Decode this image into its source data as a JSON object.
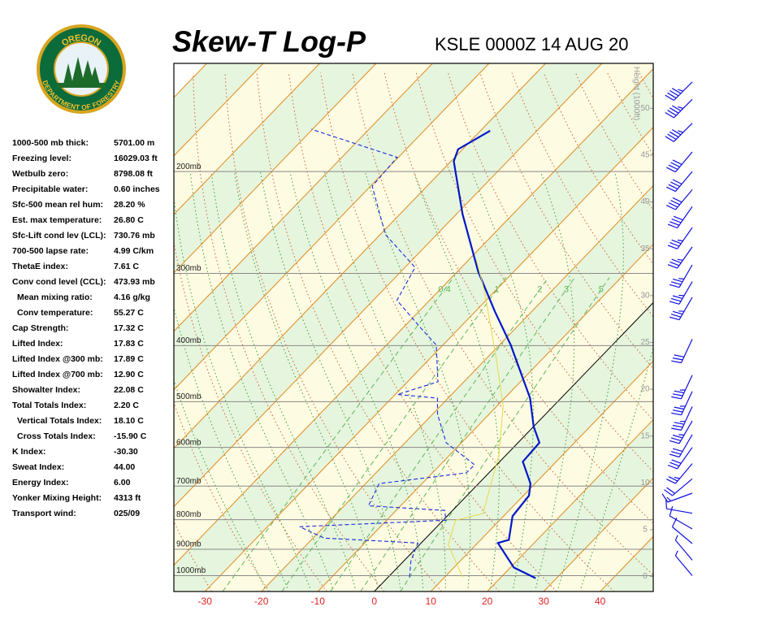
{
  "logo": {
    "top": "OREGON",
    "bottom": "DEPARTMENT OF FORESTRY"
  },
  "header": {
    "title": "Skew-T Log-P",
    "station": "KSLE 0000Z 14 AUG 20"
  },
  "indices": [
    {
      "label": "1000-500 mb thick:",
      "value": "5701.00 m"
    },
    {
      "label": "Freezing level:",
      "value": "16029.03 ft"
    },
    {
      "label": "Wetbulb zero:",
      "value": "8798.08 ft"
    },
    {
      "label": "Precipitable water:",
      "value": "0.60 inches"
    },
    {
      "label": "Sfc-500 mean rel hum:",
      "value": "28.20 %"
    },
    {
      "label": "Est. max temperature:",
      "value": "26.80 C"
    },
    {
      "label": "Sfc-Lift cond lev (LCL):",
      "value": "730.76 mb"
    },
    {
      "label": "700-500 lapse rate:",
      "value": "4.99 C/km"
    },
    {
      "label": "ThetaE index:",
      "value": "7.61 C"
    },
    {
      "label": "Conv cond level (CCL):",
      "value": "473.93 mb"
    },
    {
      "label": "Mean mixing ratio:",
      "value": "4.16 g/kg"
    },
    {
      "label": "Conv temperature:",
      "value": "55.27 C"
    },
    {
      "label": "Cap Strength:",
      "value": "17.32 C"
    },
    {
      "label": "Lifted Index:",
      "value": "17.83 C"
    },
    {
      "label": "Lifted Index @300 mb:",
      "value": "17.89 C"
    },
    {
      "label": "Lifted Index @700 mb:",
      "value": "12.90 C"
    },
    {
      "label": "Showalter Index:",
      "value": "22.08 C"
    },
    {
      "label": "Total Totals Index:",
      "value": "2.20 C"
    },
    {
      "label": "Vertical Totals Index:",
      "value": "18.10 C"
    },
    {
      "label": "Cross Totals Index:",
      "value": "-15.90 C"
    },
    {
      "label": "K Index:",
      "value": "-30.30"
    },
    {
      "label": "Sweat Index:",
      "value": "44.00"
    },
    {
      "label": "Energy Index:",
      "value": "6.00"
    },
    {
      "label": "Yonker Mixing Height:",
      "value": "4313 ft"
    },
    {
      "label": "Transport wind:",
      "value": "025/09"
    }
  ],
  "chart_data": {
    "type": "skewt",
    "xlim": [
      -35.5,
      49.4
    ],
    "xticks": [
      -30,
      -20,
      -10,
      0,
      10,
      20,
      30,
      40
    ],
    "ylim": [
      1065,
      130
    ],
    "y_log": true,
    "yticks": [
      {
        "value": 1000,
        "label": "1000mb"
      },
      {
        "value": 900,
        "label": "900mb"
      },
      {
        "value": 800,
        "label": "800mb"
      },
      {
        "value": 700,
        "label": "700mb"
      },
      {
        "value": 600,
        "label": "600mb"
      },
      {
        "value": 500,
        "label": "500mb"
      },
      {
        "value": 400,
        "label": "400mb"
      },
      {
        "value": 300,
        "label": "300mb"
      },
      {
        "value": 200,
        "label": "200mb"
      }
    ],
    "skew_deg": 44,
    "height_label": "Height (1000ft)",
    "height_lim": [
      -1.6,
      54.8
    ],
    "height_ticks": [
      0,
      5,
      10,
      15,
      20,
      25,
      30,
      35,
      40,
      45,
      50
    ],
    "mixing_ratio_lines": [
      0.4,
      1,
      2,
      3,
      5
    ],
    "series": [
      {
        "color": "#0018c8",
        "style": "solid",
        "pressure": [
          1010,
          968,
          878,
          867,
          789,
          727,
          693,
          635,
          589,
          552,
          493,
          399,
          350,
          298,
          237,
          192,
          183,
          170
        ],
        "values": [
          26.3,
          20.6,
          13.6,
          15.0,
          11.6,
          11.0,
          9.2,
          4.1,
          3.8,
          0.0,
          -5.5,
          -18.0,
          -26.4,
          -36.3,
          -48.9,
          -59.5,
          -60.8,
          -58.3
        ]
      },
      {
        "color": "#1a2ee0",
        "style": "dashed",
        "pressure": [
          1006,
          944,
          878,
          861,
          823,
          802,
          771,
          757,
          693,
          664,
          643,
          589,
          526,
          493,
          486,
          462,
          399,
          374,
          334,
          293,
          257,
          212,
          189,
          169
        ],
        "values": [
          3.8,
          1.3,
          -0.6,
          -18.0,
          -24.3,
          0.5,
          -1.4,
          -15.7,
          -17.6,
          -4.0,
          -3.9,
          -12.7,
          -19.1,
          -21.9,
          -29.6,
          -24.6,
          -31.2,
          -36.6,
          -45.8,
          -48.2,
          -59.1,
          -69.7,
          -70.2,
          -90.2
        ]
      },
      {
        "color": "#e6d84a",
        "style": "thin",
        "pressure": [
          1006,
          884,
          802,
          781,
          618,
          509,
          419,
          323,
          284
        ],
        "values": [
          13.2,
          5.1,
          2.2,
          5.9,
          -1.3,
          -8.9,
          -18.5,
          -31.7,
          -38.7
        ]
      }
    ],
    "winds": {
      "color": "#1010e0",
      "pressure": [
        140,
        150,
        165,
        185,
        200,
        215,
        230,
        250,
        270,
        290,
        310,
        330,
        390,
        450,
        480,
        510,
        540,
        570,
        600,
        640,
        680,
        720,
        780,
        830,
        880,
        940,
        1000
      ],
      "direction": [
        225,
        225,
        225,
        220,
        220,
        220,
        215,
        215,
        215,
        210,
        210,
        210,
        205,
        205,
        205,
        205,
        210,
        210,
        215,
        220,
        230,
        250,
        280,
        300,
        310,
        320,
        320
      ],
      "speed": [
        45,
        45,
        45,
        40,
        40,
        40,
        40,
        35,
        35,
        35,
        35,
        35,
        30,
        35,
        35,
        35,
        35,
        30,
        30,
        25,
        20,
        15,
        10,
        10,
        10,
        5,
        5
      ]
    }
  }
}
